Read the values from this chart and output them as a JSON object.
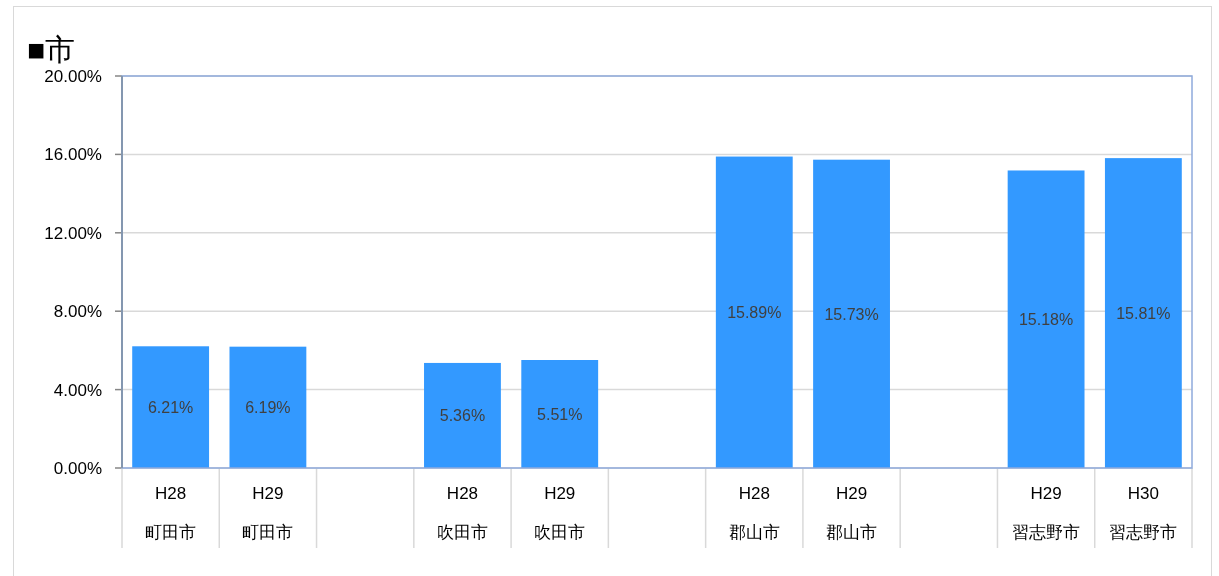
{
  "chart_data": {
    "type": "bar",
    "title": "■市",
    "categories": [
      "H28\n町田市",
      "H29\n町田市",
      null,
      "H28\n吹田市",
      "H29\n吹田市",
      null,
      "H28\n郡山市",
      "H29\n郡山市",
      null,
      "H29\n習志野市",
      "H30\n習志野市"
    ],
    "values": [
      6.21,
      6.19,
      null,
      5.36,
      5.51,
      null,
      15.89,
      15.73,
      null,
      15.18,
      15.81
    ],
    "value_labels": [
      "6.21%",
      "6.19%",
      null,
      "5.36%",
      "5.51%",
      null,
      "15.89%",
      "15.73%",
      null,
      "15.18%",
      "15.81%"
    ],
    "color": "#3399ff",
    "ylim": [
      0,
      20
    ],
    "yticks": [
      {
        "value": 0,
        "label": "0.00%"
      },
      {
        "value": 4,
        "label": "4.00%"
      },
      {
        "value": 8,
        "label": "8.00%"
      },
      {
        "value": 12,
        "label": "12.00%"
      },
      {
        "value": 16,
        "label": "16.00%"
      },
      {
        "value": 20,
        "label": "20.00%"
      }
    ],
    "grid": "y"
  }
}
